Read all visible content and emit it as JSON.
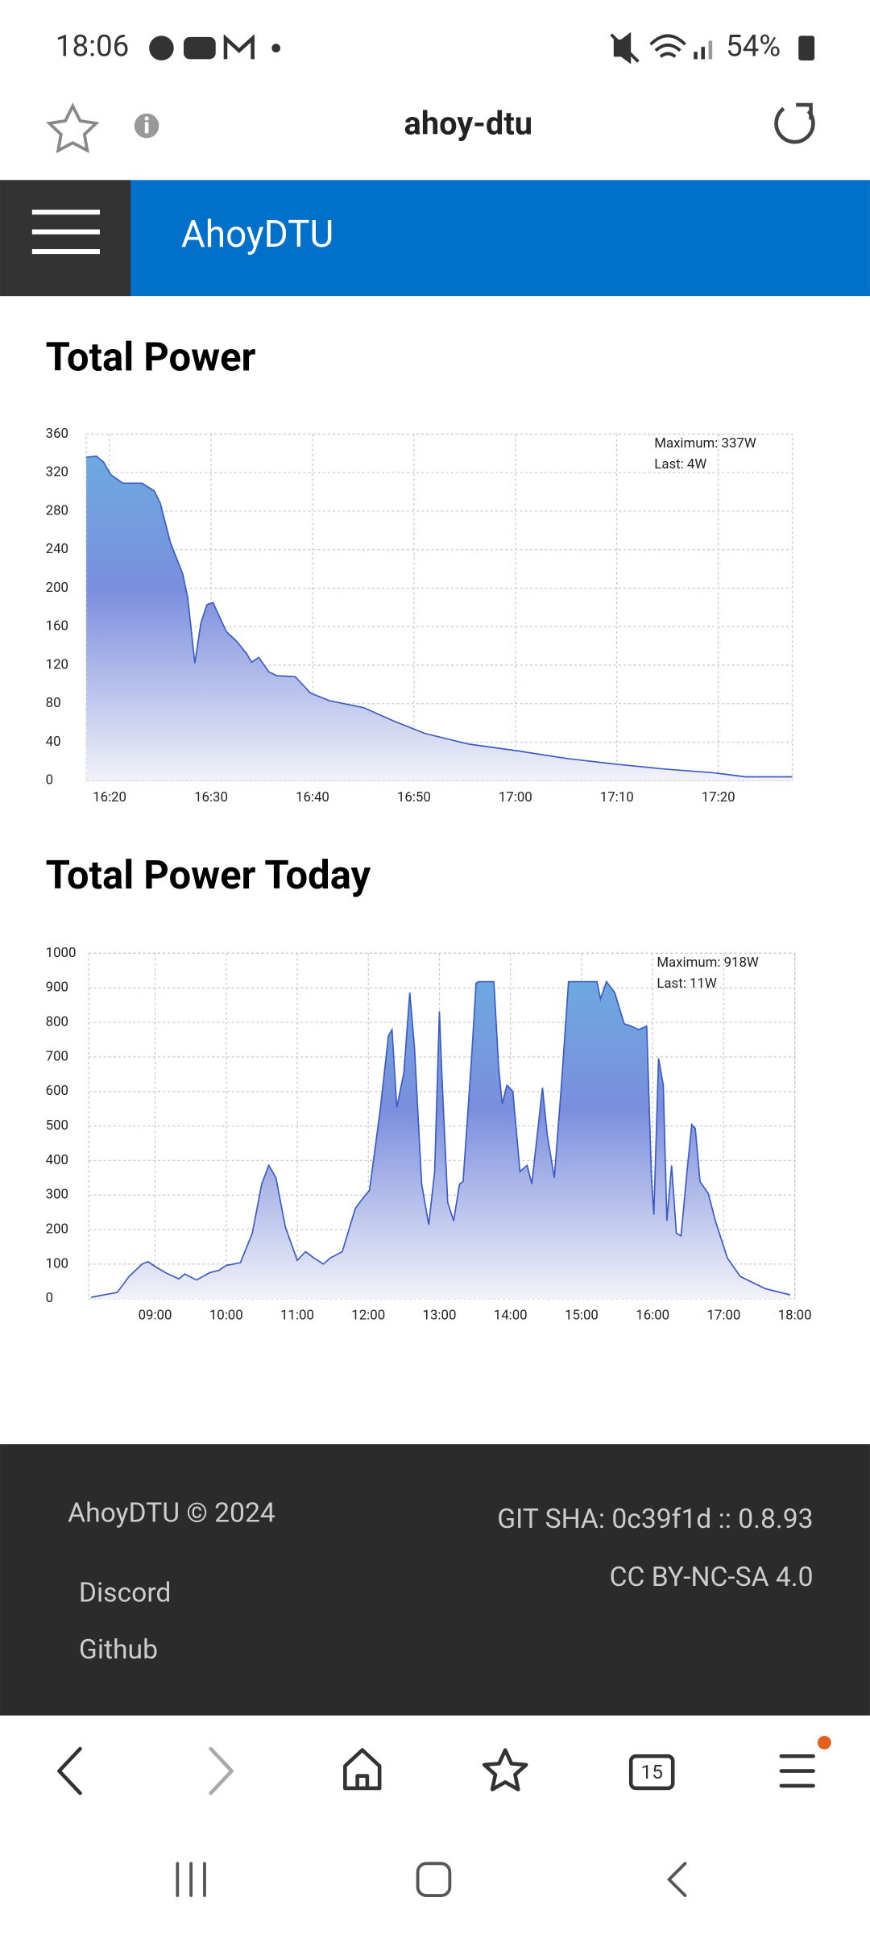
{
  "status_bar": {
    "time": "18:06",
    "battery": "54%"
  },
  "browser_bar": {
    "title": "ahoy-dtu",
    "tab_count": "15"
  },
  "header": {
    "title": "AhoyDTU"
  },
  "chart_data": [
    {
      "type": "area",
      "title": "Total Power",
      "color": "#3a5cc4",
      "annotations": [
        "Maximum: 337W",
        "Last: 4W"
      ],
      "x": [
        977.7,
        978.7,
        979.4,
        980.1,
        981.3,
        983.2,
        984.4,
        985,
        986,
        987.2,
        987.7,
        988.4,
        989,
        989.6,
        990.2,
        990.8,
        991.5,
        992.5,
        993.5,
        994,
        994.7,
        995.7,
        996.5,
        998.3,
        999.8,
        1001.7,
        1005,
        1008,
        1011.1,
        1015.4,
        1020.2,
        1025.1,
        1030,
        1034.8,
        1039.7,
        1042.7,
        1047.3
      ],
      "values": [
        336,
        337,
        331,
        318,
        309,
        309,
        301,
        288,
        247,
        215,
        190,
        122,
        164,
        183,
        185,
        171,
        155,
        145,
        132,
        123,
        128,
        113,
        109,
        108,
        91,
        83,
        76,
        62,
        49,
        38,
        31,
        23,
        17,
        12,
        8,
        4,
        4
      ],
      "xlim": [
        977.7,
        1047.3
      ],
      "xticks": [
        {
          "value": 980,
          "label": "16:20"
        },
        {
          "value": 990,
          "label": "16:30"
        },
        {
          "value": 1000,
          "label": "16:40"
        },
        {
          "value": 1010,
          "label": "16:50"
        },
        {
          "value": 1020,
          "label": "17:00"
        },
        {
          "value": 1030,
          "label": "17:10"
        },
        {
          "value": 1040,
          "label": "17:20"
        }
      ],
      "ylim": [
        0,
        360
      ],
      "yticks": [
        0,
        40,
        80,
        120,
        160,
        200,
        240,
        280,
        320,
        360
      ],
      "grid": true
    },
    {
      "type": "area",
      "title": "Total Power Today",
      "color": "#3a5cc4",
      "annotations": [
        "Maximum: 918W",
        "Last: 11W"
      ],
      "x": [
        486,
        508,
        518,
        529,
        534,
        540,
        549,
        560,
        565,
        575,
        586,
        594,
        600,
        612,
        622,
        630,
        636,
        642,
        650,
        660,
        667,
        674,
        682,
        688,
        698,
        709,
        715,
        721,
        730,
        737,
        740,
        744,
        750,
        755,
        759,
        765,
        771,
        776,
        780,
        782,
        787,
        792,
        797,
        800,
        807,
        811,
        813,
        826,
        830,
        833,
        837,
        842,
        848,
        854,
        858,
        867,
        871,
        877,
        883,
        889,
        913,
        916,
        921,
        928,
        936,
        942,
        948,
        955,
        959,
        961,
        965,
        969,
        972,
        976,
        980,
        984,
        989,
        993,
        996,
        1000,
        1007,
        1013,
        1023,
        1034,
        1055,
        1076
      ],
      "values": [
        4,
        18,
        64,
        100,
        107,
        93,
        75,
        57,
        71,
        54,
        75,
        82,
        96,
        104,
        189,
        332,
        386,
        350,
        207,
        111,
        136,
        118,
        100,
        118,
        136,
        261,
        289,
        314,
        546,
        761,
        779,
        554,
        654,
        886,
        725,
        332,
        214,
        368,
        832,
        654,
        279,
        225,
        332,
        339,
        689,
        914,
        918,
        918,
        671,
        564,
        618,
        600,
        368,
        386,
        332,
        611,
        475,
        350,
        618,
        918,
        918,
        868,
        918,
        886,
        796,
        789,
        779,
        789,
        350,
        243,
        696,
        618,
        225,
        386,
        189,
        182,
        368,
        504,
        493,
        339,
        304,
        225,
        118,
        64,
        29,
        11
      ],
      "xlim": [
        484,
        1080
      ],
      "xticks": [
        {
          "value": 540,
          "label": "09:00"
        },
        {
          "value": 600,
          "label": "10:00"
        },
        {
          "value": 660,
          "label": "11:00"
        },
        {
          "value": 720,
          "label": "12:00"
        },
        {
          "value": 780,
          "label": "13:00"
        },
        {
          "value": 840,
          "label": "14:00"
        },
        {
          "value": 900,
          "label": "15:00"
        },
        {
          "value": 960,
          "label": "16:00"
        },
        {
          "value": 1020,
          "label": "17:00"
        },
        {
          "value": 1080,
          "label": "18:00"
        }
      ],
      "ylim": [
        0,
        1000
      ],
      "yticks": [
        0,
        100,
        200,
        300,
        400,
        500,
        600,
        700,
        800,
        900,
        1000
      ],
      "grid": true
    }
  ],
  "footer": {
    "copyright": "AhoyDTU © 2024",
    "version": "GIT SHA: 0c39f1d :: 0.8.93",
    "license": "CC BY-NC-SA 4.0",
    "links": [
      "Discord",
      "Github"
    ]
  }
}
